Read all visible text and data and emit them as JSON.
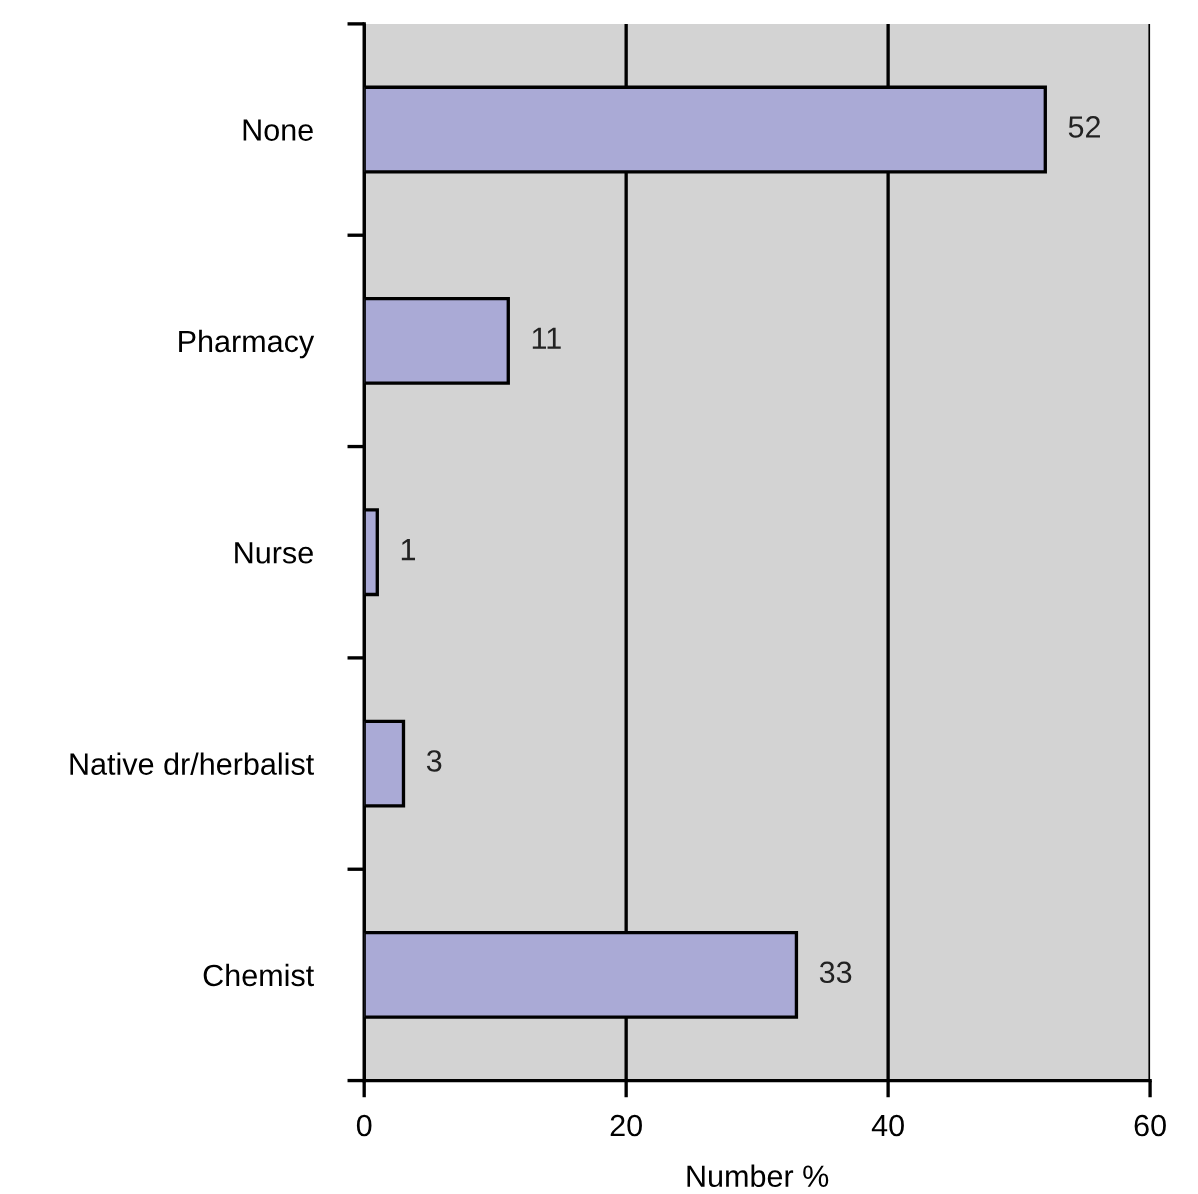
{
  "chart_data": {
    "type": "bar",
    "orientation": "horizontal",
    "categories": [
      "None",
      "Pharmacy",
      "Nurse",
      "Native dr/herbalist",
      "Chemist"
    ],
    "values": [
      52,
      11,
      1,
      3,
      33
    ],
    "color": "#aaaad6",
    "xlabel": "Number %",
    "xlim": [
      0,
      60
    ],
    "xticks": [
      0,
      20,
      40,
      60
    ],
    "grid": "x",
    "data_labels": true
  }
}
